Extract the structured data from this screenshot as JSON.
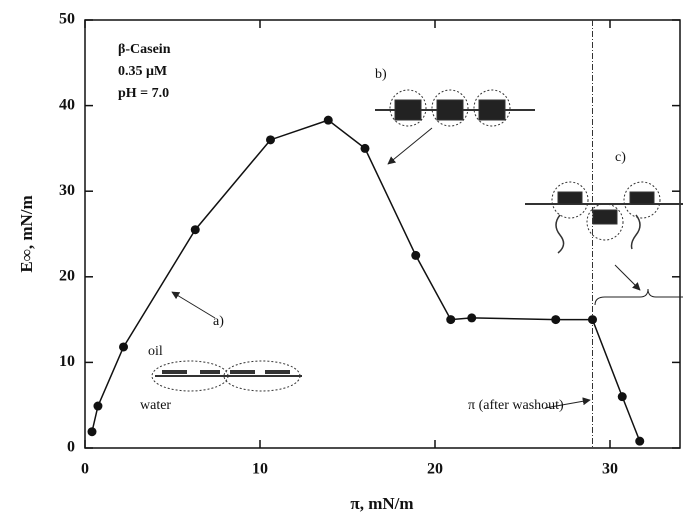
{
  "chart_data": {
    "type": "line",
    "x_label": "π, mN/m",
    "y_label": "E∞, mN/m",
    "annotations": [
      "β-Casein",
      "0.35 μM",
      "pH = 7.0",
      "b)",
      "c)",
      "a)",
      "oil",
      "water",
      "π (after washout)"
    ],
    "x": [
      0.4,
      0.74,
      2.2,
      6.3,
      10.6,
      13.9,
      16.0,
      18.9,
      20.9,
      22.1,
      26.9,
      29.0,
      30.7,
      31.7
    ],
    "series": [
      {
        "color": "#111111",
        "values": [
          1.9,
          4.9,
          11.8,
          25.5,
          36.0,
          38.3,
          35.0,
          22.5,
          15.0,
          15.2,
          15.0,
          15.0,
          6.0,
          0.8
        ]
      }
    ],
    "xlim": [
      0,
      34
    ],
    "ylim": [
      0,
      50
    ],
    "xticks": [
      0,
      10,
      20,
      30
    ],
    "yticks": [
      0,
      10,
      20,
      30,
      40,
      50
    ],
    "reference_x": 29
  }
}
